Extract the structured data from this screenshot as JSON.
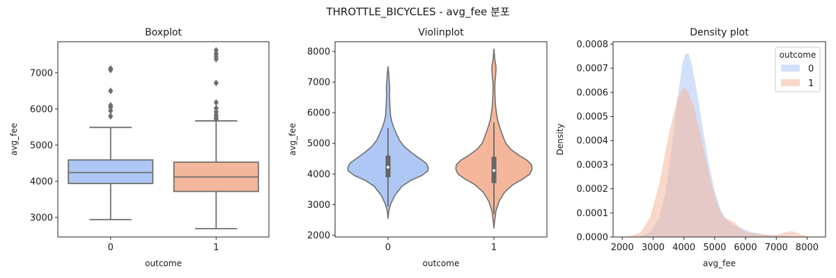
{
  "suptitle": "THROTTLE_BICYCLES - avg_fee 분포",
  "chart_data": [
    {
      "type": "box",
      "title": "Boxplot",
      "xlabel": "outcome",
      "ylabel": "avg_fee",
      "categories": [
        "0",
        "1"
      ],
      "ylim": [
        2460,
        7860
      ],
      "yticks": [
        3000,
        4000,
        5000,
        6000,
        7000
      ],
      "colors": [
        "#aec7f5",
        "#f4b79c"
      ],
      "boxes": [
        {
          "category": "0",
          "whisker_low": 2940,
          "q1": 3940,
          "median": 4240,
          "q3": 4590,
          "whisker_high": 5490,
          "outliers": [
            5800,
            5950,
            6050,
            6100,
            6500,
            7080,
            7120
          ]
        },
        {
          "category": "1",
          "whisker_low": 2690,
          "q1": 3720,
          "median": 4120,
          "q3": 4530,
          "whisker_high": 5670,
          "outliers": [
            5720,
            5770,
            5830,
            5920,
            6020,
            6180,
            6720,
            7380,
            7460,
            7530,
            7620
          ]
        }
      ]
    },
    {
      "type": "violin",
      "title": "Violinplot",
      "xlabel": "outcome",
      "ylabel": "avg_fee",
      "categories": [
        "0",
        "1"
      ],
      "ylim": [
        1940,
        8320
      ],
      "yticks": [
        2000,
        3000,
        4000,
        5000,
        6000,
        7000,
        8000
      ],
      "colors": [
        "#aec7f5",
        "#f4b79c"
      ],
      "violins": [
        {
          "category": "0",
          "q1": 3890,
          "median": 4220,
          "q3": 4600,
          "whisker_low": 2940,
          "whisker_high": 5500,
          "profile": [
            [
              2550,
              0
            ],
            [
              2800,
              0.02
            ],
            [
              3000,
              0.06
            ],
            [
              3300,
              0.16
            ],
            [
              3600,
              0.33
            ],
            [
              3800,
              0.55
            ],
            [
              3950,
              0.8
            ],
            [
              4100,
              0.94
            ],
            [
              4200,
              0.95
            ],
            [
              4350,
              0.9
            ],
            [
              4500,
              0.75
            ],
            [
              4700,
              0.55
            ],
            [
              4900,
              0.38
            ],
            [
              5100,
              0.27
            ],
            [
              5300,
              0.2
            ],
            [
              5500,
              0.14
            ],
            [
              5700,
              0.09
            ],
            [
              5900,
              0.06
            ],
            [
              6000,
              0.055
            ],
            [
              6200,
              0.045
            ],
            [
              6400,
              0.04
            ],
            [
              6600,
              0.035
            ],
            [
              6800,
              0.04
            ],
            [
              7000,
              0.03
            ],
            [
              7300,
              0.015
            ],
            [
              7500,
              0
            ]
          ]
        },
        {
          "category": "1",
          "q1": 3700,
          "median": 4110,
          "q3": 4560,
          "whisker_low": 2690,
          "whisker_high": 5680,
          "profile": [
            [
              2230,
              0
            ],
            [
              2500,
              0.02
            ],
            [
              2800,
              0.05
            ],
            [
              3100,
              0.12
            ],
            [
              3400,
              0.25
            ],
            [
              3650,
              0.45
            ],
            [
              3850,
              0.7
            ],
            [
              4000,
              0.85
            ],
            [
              4150,
              0.9
            ],
            [
              4300,
              0.89
            ],
            [
              4450,
              0.78
            ],
            [
              4600,
              0.6
            ],
            [
              4800,
              0.4
            ],
            [
              5000,
              0.28
            ],
            [
              5200,
              0.22
            ],
            [
              5400,
              0.17
            ],
            [
              5600,
              0.12
            ],
            [
              5800,
              0.08
            ],
            [
              6000,
              0.06
            ],
            [
              6200,
              0.04
            ],
            [
              6400,
              0.03
            ],
            [
              6600,
              0.025
            ],
            [
              6800,
              0.02
            ],
            [
              7000,
              0.025
            ],
            [
              7200,
              0.04
            ],
            [
              7400,
              0.05
            ],
            [
              7550,
              0.045
            ],
            [
              7750,
              0.02
            ],
            [
              8080,
              0
            ]
          ]
        }
      ]
    },
    {
      "type": "area",
      "title": "Density plot",
      "xlabel": "avg_fee",
      "ylabel": "Density",
      "xlim": [
        1700,
        8600
      ],
      "ylim": [
        0,
        0.00081
      ],
      "xticks": [
        2000,
        3000,
        4000,
        5000,
        6000,
        7000,
        8000
      ],
      "yticks": [
        0.0,
        0.0001,
        0.0002,
        0.0003,
        0.0004,
        0.0005,
        0.0006,
        0.0007,
        0.0008
      ],
      "legend": {
        "title": "outcome",
        "position": "upper right"
      },
      "series": [
        {
          "name": "0",
          "color": "#aec7f5",
          "points": [
            [
              2300,
              0
            ],
            [
              2600,
              4e-06
            ],
            [
              2900,
              2e-05
            ],
            [
              3200,
              8e-05
            ],
            [
              3400,
              0.00018
            ],
            [
              3600,
              0.00036
            ],
            [
              3800,
              0.00058
            ],
            [
              3950,
              0.00072
            ],
            [
              4050,
              0.00076
            ],
            [
              4150,
              0.00076
            ],
            [
              4250,
              0.00072
            ],
            [
              4400,
              0.00062
            ],
            [
              4600,
              0.00046
            ],
            [
              4800,
              0.00031
            ],
            [
              5000,
              0.00019
            ],
            [
              5200,
              0.00011
            ],
            [
              5400,
              7e-05
            ],
            [
              5600,
              5e-05
            ],
            [
              5800,
              4e-05
            ],
            [
              6000,
              3e-05
            ],
            [
              6200,
              2e-05
            ],
            [
              6400,
              1.5e-05
            ],
            [
              6600,
              1e-05
            ],
            [
              7000,
              6e-06
            ],
            [
              7400,
              3e-06
            ],
            [
              7800,
              1e-06
            ],
            [
              8000,
              0
            ]
          ]
        },
        {
          "name": "1",
          "color": "#f4b79c",
          "points": [
            [
              2000,
              0
            ],
            [
              2300,
              5e-06
            ],
            [
              2600,
              2e-05
            ],
            [
              2900,
              8e-05
            ],
            [
              3200,
              0.00022
            ],
            [
              3500,
              0.00042
            ],
            [
              3800,
              0.00058
            ],
            [
              4000,
              0.00062
            ],
            [
              4100,
              0.00061
            ],
            [
              4300,
              0.00055
            ],
            [
              4500,
              0.00045
            ],
            [
              4700,
              0.00033
            ],
            [
              4900,
              0.00022
            ],
            [
              5100,
              0.00013
            ],
            [
              5300,
              8e-05
            ],
            [
              5500,
              7e-05
            ],
            [
              5650,
              6e-05
            ],
            [
              5800,
              4e-05
            ],
            [
              6000,
              2e-05
            ],
            [
              6300,
              1.5e-05
            ],
            [
              6600,
              1e-05
            ],
            [
              7000,
              8e-06
            ],
            [
              7300,
              2e-05
            ],
            [
              7500,
              2.5e-05
            ],
            [
              7700,
              1.5e-05
            ],
            [
              8000,
              3e-06
            ],
            [
              8300,
              0
            ]
          ]
        }
      ]
    }
  ]
}
